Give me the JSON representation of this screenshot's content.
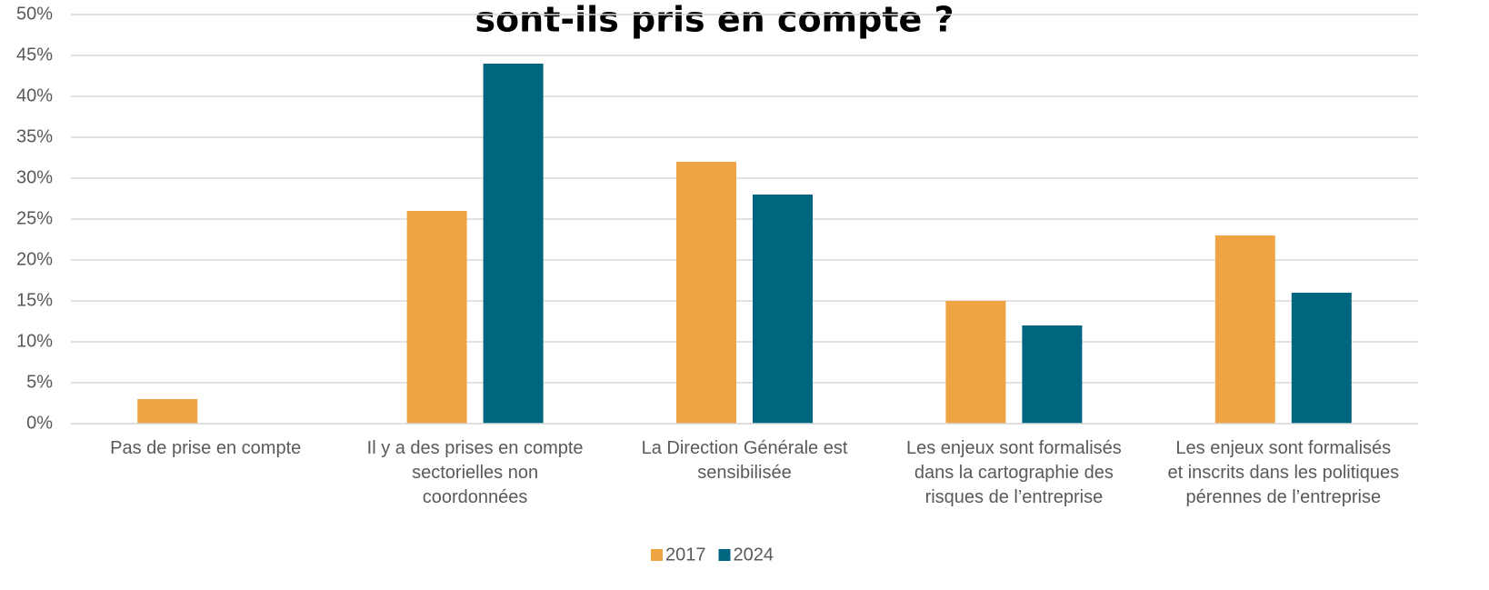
{
  "chart_data": {
    "type": "bar",
    "title": "sont-ils pris en compte ?",
    "categories": [
      "Pas de prise en compte",
      "Il y a des prises en compte\nsectorielles non\ncoordonnées",
      "La Direction Générale est\nsensibilisée",
      "Les enjeux sont formalisés\ndans la cartographie des\nrisques de l’entreprise",
      "Les enjeux sont formalisés\net inscrits dans les politiques\npérennes de l’entreprise"
    ],
    "series": [
      {
        "name": "2017",
        "color": "#f0a342",
        "values": [
          3,
          26,
          32,
          15,
          23
        ]
      },
      {
        "name": "2024",
        "color": "#00667f",
        "values": [
          null,
          44,
          28,
          12,
          16
        ]
      }
    ],
    "ylim": [
      0,
      50
    ],
    "yticks": [
      {
        "value": 0,
        "label": "0%"
      },
      {
        "value": 5,
        "label": "5%"
      },
      {
        "value": 10,
        "label": "10%"
      },
      {
        "value": 15,
        "label": "15%"
      },
      {
        "value": 20,
        "label": "20%"
      },
      {
        "value": 25,
        "label": "25%"
      },
      {
        "value": 30,
        "label": "30%"
      },
      {
        "value": 35,
        "label": "35%"
      },
      {
        "value": 40,
        "label": "40%"
      },
      {
        "value": 45,
        "label": "45%"
      },
      {
        "value": 50,
        "label": "50%"
      }
    ],
    "grid": true,
    "legend": "bottom"
  }
}
